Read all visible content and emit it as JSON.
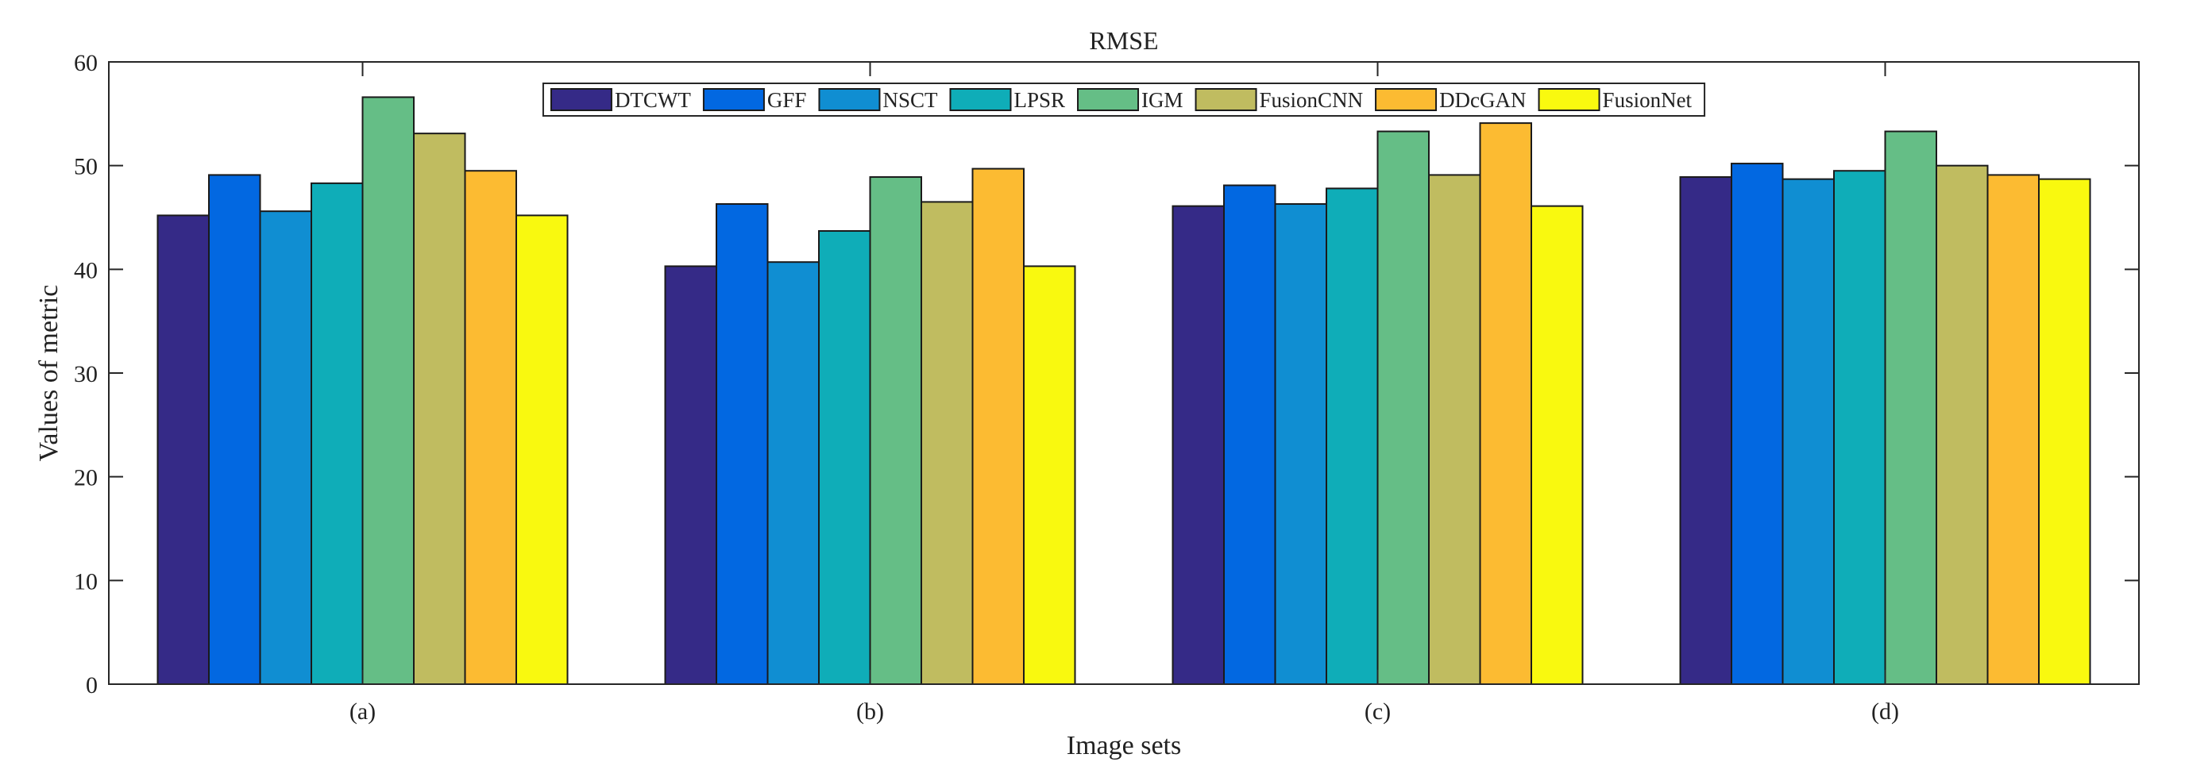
{
  "chart_data": {
    "type": "bar",
    "title": "RMSE",
    "xlabel": "Image sets",
    "ylabel": "Values of metric",
    "ylim": [
      0,
      60
    ],
    "yticks": [
      0,
      10,
      20,
      30,
      40,
      50,
      60
    ],
    "categories": [
      "(a)",
      "(b)",
      "(c)",
      "(d)"
    ],
    "legend_position": "top-center",
    "grid": false,
    "series": [
      {
        "name": "DTCWT",
        "color": "#352a87",
        "values": [
          45.2,
          40.3,
          46.1,
          48.9
        ]
      },
      {
        "name": "GFF",
        "color": "#0268e1",
        "values": [
          49.1,
          46.3,
          48.1,
          50.2
        ]
      },
      {
        "name": "NSCT",
        "color": "#108ed2",
        "values": [
          45.6,
          40.7,
          46.3,
          48.7
        ]
      },
      {
        "name": "LPSR",
        "color": "#0fadb8",
        "values": [
          48.3,
          43.7,
          47.8,
          49.5
        ]
      },
      {
        "name": "IGM",
        "color": "#65be86",
        "values": [
          56.6,
          48.9,
          53.3,
          53.3
        ]
      },
      {
        "name": "FusionCNN",
        "color": "#c0bc60",
        "values": [
          53.1,
          46.5,
          49.1,
          50.0
        ]
      },
      {
        "name": "DDcGAN",
        "color": "#fcbb32",
        "values": [
          49.5,
          49.7,
          54.1,
          49.1
        ]
      },
      {
        "name": "FusionNet",
        "color": "#f9f90f",
        "values": [
          45.2,
          40.3,
          46.1,
          48.7
        ]
      }
    ]
  }
}
